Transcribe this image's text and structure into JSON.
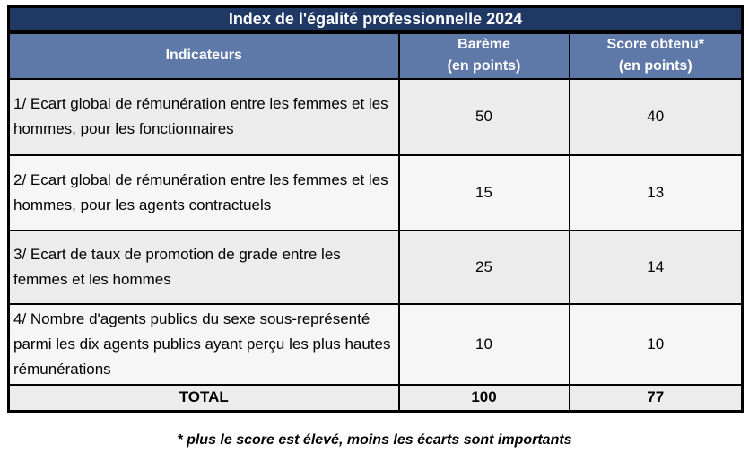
{
  "title": "Index de l'égalité professionnelle 2024",
  "table": {
    "headers": {
      "indicators": "Indicateurs",
      "bareme_line1": "Barème",
      "bareme_line2": "(en points)",
      "score_line1": "Score obtenu*",
      "score_line2": "(en points)"
    },
    "rows": [
      {
        "indicator": "1/ Ecart global de rémunération entre les femmes et les hommes, pour les fonctionnaires",
        "bareme": "50",
        "score": "40"
      },
      {
        "indicator": "2/ Ecart global de rémunération entre les femmes et les hommes, pour les agents contractuels",
        "bareme": "15",
        "score": "13"
      },
      {
        "indicator": "3/ Ecart de taux de promotion de grade entre les femmes et les hommes",
        "bareme": "25",
        "score": "14"
      },
      {
        "indicator": "4/ Nombre d'agents publics du sexe sous-représenté parmi les dix agents publics ayant perçu les plus hautes rémunérations",
        "bareme": "10",
        "score": "10"
      }
    ],
    "total": {
      "label": "TOTAL",
      "bareme": "100",
      "score": "77"
    }
  },
  "footnote": "* plus le score est élevé, moins les écarts sont importants",
  "colors": {
    "title_bg": "#1F3864",
    "header_bg": "#5E78A8",
    "row_odd_bg": "#ECECEC",
    "row_even_bg": "#F6F6F6",
    "border": "#000000",
    "header_text": "#FFFFFF",
    "body_text": "#000000"
  }
}
